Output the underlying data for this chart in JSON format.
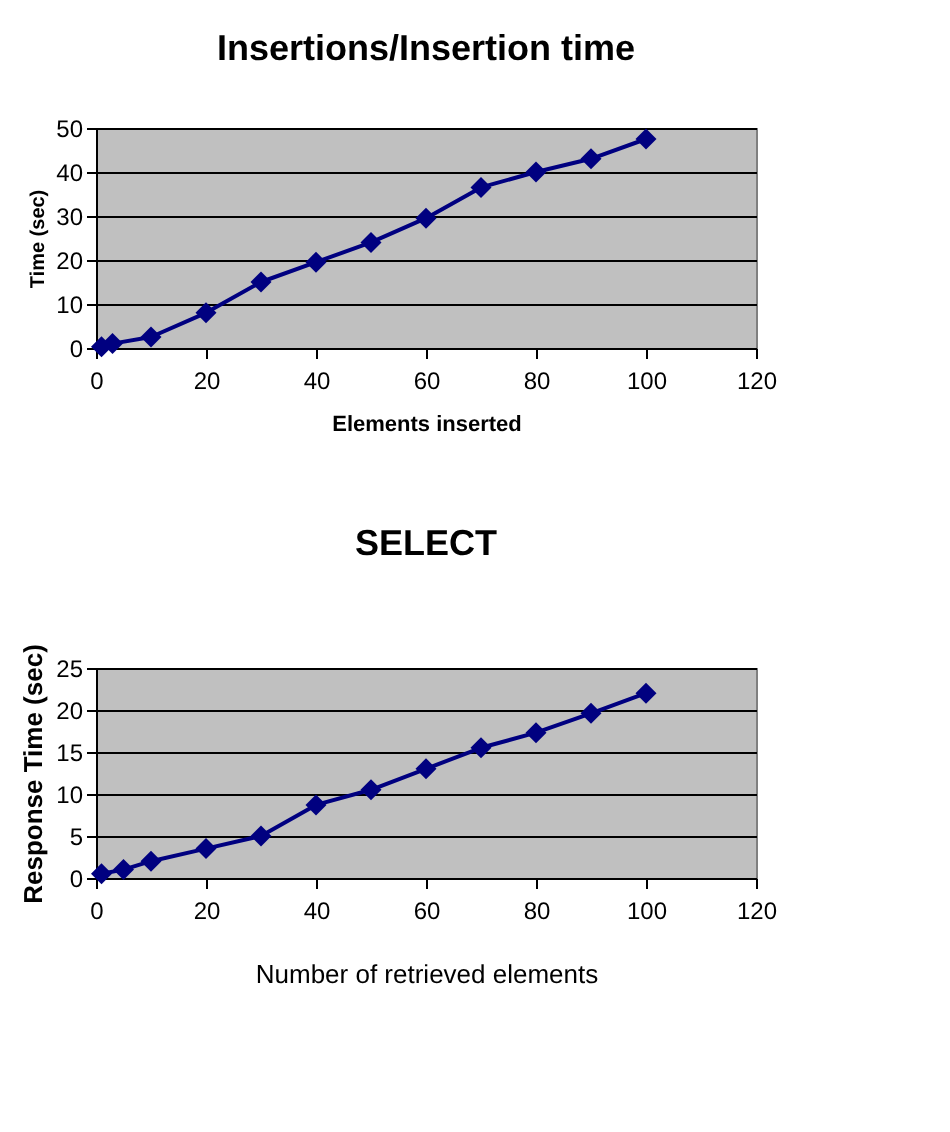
{
  "chart_data": [
    {
      "type": "line",
      "title": "Insertions/Insertion time",
      "xlabel": "Elements inserted",
      "ylabel": "Time (sec)",
      "x": [
        1,
        3,
        10,
        20,
        30,
        40,
        50,
        60,
        70,
        80,
        90,
        100
      ],
      "series": [
        {
          "color": "#000080",
          "values": [
            0.3,
            1,
            2.5,
            8,
            15,
            19.5,
            24,
            29.5,
            36.5,
            40,
            43,
            47.5
          ]
        }
      ],
      "xlim": [
        0,
        120
      ],
      "xticks": [
        0,
        20,
        40,
        60,
        80,
        100,
        120
      ],
      "ylim": [
        0,
        50
      ],
      "yticks": [
        0,
        10,
        20,
        30,
        40,
        50
      ],
      "grid": "y",
      "marker": "diamond",
      "line_style": "solid"
    },
    {
      "type": "line",
      "title": "SELECT",
      "xlabel": "Number of retrieved elements",
      "ylabel": "Response Time (sec)",
      "x": [
        1,
        5,
        10,
        20,
        30,
        40,
        50,
        60,
        70,
        80,
        90,
        100
      ],
      "series": [
        {
          "color": "#000080",
          "values": [
            0.5,
            1,
            2,
            3.5,
            5,
            8.7,
            10.5,
            13,
            15.5,
            17.3,
            19.6,
            22
          ]
        }
      ],
      "xlim": [
        0,
        120
      ],
      "xticks": [
        0,
        20,
        40,
        60,
        80,
        100,
        120
      ],
      "ylim": [
        0,
        25
      ],
      "yticks": [
        0,
        5,
        10,
        15,
        20,
        25
      ],
      "grid": "y",
      "marker": "diamond",
      "line_style": "solid"
    }
  ]
}
